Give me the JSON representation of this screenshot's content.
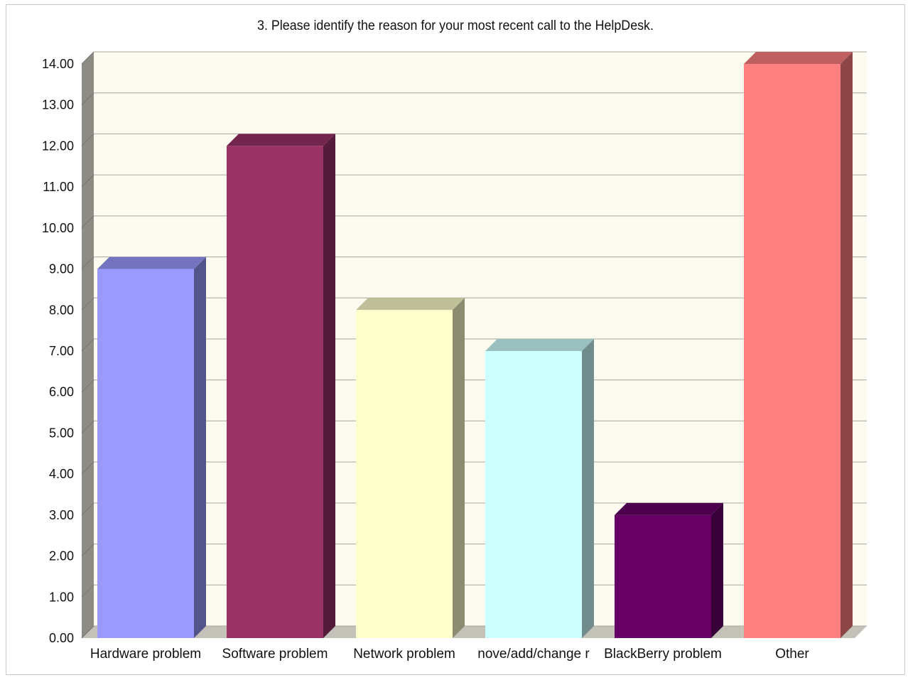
{
  "chart_data": {
    "type": "bar",
    "title": "3. Please identify the reason for your most recent call to the HelpDesk.",
    "categories": [
      "Hardware problem",
      "Software problem",
      "Network problem",
      "move/add/change request",
      "BlackBerry problem",
      "Other"
    ],
    "category_labels_visible": [
      "Hardware problem",
      "Software problem",
      "Network problem",
      "nove/add/change r",
      "BlackBerry problem",
      "Other"
    ],
    "values": [
      9,
      12,
      8,
      7,
      3,
      14
    ],
    "colors": [
      "#9999ff",
      "#993366",
      "#ffffcc",
      "#ccffff",
      "#660066",
      "#ff8080"
    ],
    "ylim": [
      0,
      14
    ],
    "yticks": [
      "0.00",
      "1.00",
      "2.00",
      "3.00",
      "4.00",
      "5.00",
      "6.00",
      "7.00",
      "8.00",
      "9.00",
      "10.00",
      "11.00",
      "12.00",
      "13.00",
      "14.00"
    ],
    "xlabel": "",
    "ylabel": "",
    "grid": true,
    "legend": "none",
    "style": "3d-columns"
  }
}
